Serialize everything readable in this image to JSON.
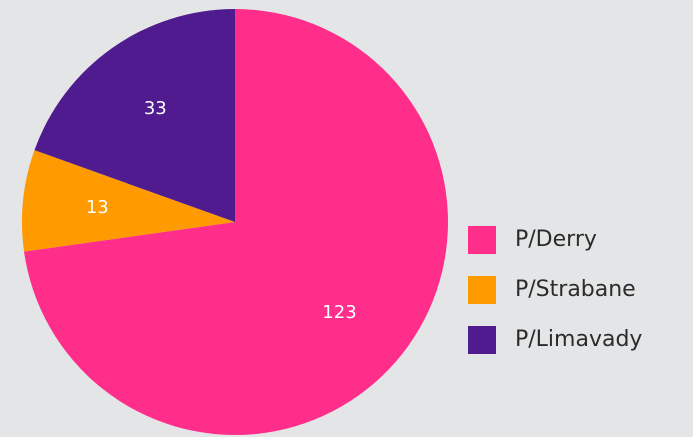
{
  "chart_data": {
    "type": "pie",
    "categories": [
      "P/Derry",
      "P/Strabane",
      "P/Limavady"
    ],
    "values": [
      123,
      13,
      33
    ],
    "colors": [
      "#ff2e8b",
      "#ff9a00",
      "#501b8f"
    ],
    "legend": "right"
  }
}
